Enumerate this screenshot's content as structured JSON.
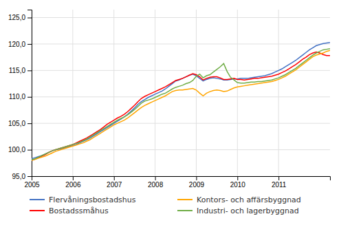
{
  "chart_data": {
    "type": "line",
    "x": [
      2005,
      2005.0833,
      2005.1667,
      2005.25,
      2005.3333,
      2005.4167,
      2005.5,
      2005.5833,
      2005.6667,
      2005.75,
      2005.8333,
      2005.9167,
      2006,
      2006.0833,
      2006.1667,
      2006.25,
      2006.3333,
      2006.4167,
      2006.5,
      2006.5833,
      2006.6667,
      2006.75,
      2006.8333,
      2006.9167,
      2007,
      2007.0833,
      2007.1667,
      2007.25,
      2007.3333,
      2007.4167,
      2007.5,
      2007.5833,
      2007.6667,
      2007.75,
      2007.8333,
      2007.9167,
      2008,
      2008.0833,
      2008.1667,
      2008.25,
      2008.3333,
      2008.4167,
      2008.5,
      2008.5833,
      2008.6667,
      2008.75,
      2008.8333,
      2008.9167,
      2009,
      2009.0833,
      2009.1667,
      2009.25,
      2009.3333,
      2009.4167,
      2009.5,
      2009.5833,
      2009.6667,
      2009.75,
      2009.8333,
      2009.9167,
      2010,
      2010.0833,
      2010.1667,
      2010.25,
      2010.3333,
      2010.4167,
      2010.5,
      2010.5833,
      2010.6667,
      2010.75,
      2010.8333,
      2010.9167,
      2011,
      2011.0833,
      2011.1667,
      2011.25,
      2011.3333,
      2011.4167,
      2011.5,
      2011.5833,
      2011.6667,
      2011.75,
      2011.8333,
      2011.9167,
      2012,
      2012.0833,
      2012.1667,
      2012.25
    ],
    "series": [
      {
        "name": "Flervåningsbostadshus",
        "color": "#4472C4",
        "values": [
          98.3,
          98.5,
          98.7,
          98.9,
          99.2,
          99.5,
          99.8,
          100.0,
          100.1,
          100.2,
          100.4,
          100.6,
          100.8,
          101.0,
          101.3,
          101.6,
          101.9,
          102.2,
          102.6,
          103.0,
          103.4,
          103.8,
          104.2,
          104.6,
          105.0,
          105.4,
          105.8,
          106.2,
          106.7,
          107.3,
          107.9,
          108.6,
          109.1,
          109.5,
          109.9,
          110.2,
          110.5,
          110.8,
          111.1,
          111.5,
          112.0,
          112.5,
          113.0,
          113.2,
          113.5,
          113.8,
          114.1,
          114.3,
          114.0,
          113.5,
          113.0,
          113.3,
          113.5,
          113.6,
          113.5,
          113.4,
          113.2,
          113.2,
          113.3,
          113.4,
          113.4,
          113.5,
          113.5,
          113.5,
          113.6,
          113.7,
          113.8,
          113.9,
          114.0,
          114.2,
          114.4,
          114.7,
          115.0,
          115.3,
          115.7,
          116.1,
          116.5,
          116.9,
          117.4,
          117.9,
          118.4,
          118.9,
          119.3,
          119.7,
          119.9,
          120.1,
          120.2,
          120.3
        ]
      },
      {
        "name": "Bostadssmåhus",
        "color": "#FF0000",
        "values": [
          98.0,
          98.2,
          98.5,
          98.8,
          99.1,
          99.5,
          99.8,
          100.0,
          100.2,
          100.4,
          100.6,
          100.8,
          101.0,
          101.3,
          101.6,
          101.9,
          102.2,
          102.6,
          103.0,
          103.4,
          103.8,
          104.3,
          104.8,
          105.2,
          105.6,
          106.0,
          106.3,
          106.7,
          107.2,
          107.8,
          108.4,
          109.1,
          109.7,
          110.1,
          110.4,
          110.7,
          111.0,
          111.3,
          111.6,
          111.9,
          112.3,
          112.7,
          113.1,
          113.3,
          113.5,
          113.8,
          114.1,
          114.4,
          114.2,
          113.8,
          113.2,
          113.5,
          113.7,
          113.8,
          113.8,
          113.6,
          113.3,
          113.3,
          113.4,
          113.5,
          113.3,
          113.3,
          113.2,
          113.3,
          113.4,
          113.5,
          113.5,
          113.6,
          113.7,
          113.8,
          113.9,
          114.1,
          114.3,
          114.6,
          114.9,
          115.3,
          115.7,
          116.1,
          116.6,
          117.1,
          117.5,
          118.0,
          118.3,
          118.5,
          118.3,
          118.0,
          117.8,
          117.8
        ]
      },
      {
        "name": "Kontors- och affärsbyggnad",
        "color": "#FFA500",
        "values": [
          98.0,
          98.2,
          98.4,
          98.6,
          98.8,
          99.1,
          99.4,
          99.7,
          99.9,
          100.1,
          100.3,
          100.5,
          100.7,
          100.9,
          101.1,
          101.3,
          101.6,
          101.9,
          102.3,
          102.7,
          103.1,
          103.5,
          103.9,
          104.3,
          104.7,
          105.0,
          105.3,
          105.6,
          106.0,
          106.5,
          107.0,
          107.5,
          108.0,
          108.4,
          108.7,
          109.0,
          109.3,
          109.6,
          109.9,
          110.2,
          110.6,
          111.0,
          111.2,
          111.3,
          111.3,
          111.4,
          111.5,
          111.6,
          111.3,
          110.7,
          110.2,
          110.7,
          111.0,
          111.2,
          111.3,
          111.2,
          111.0,
          111.1,
          111.4,
          111.7,
          111.9,
          112.0,
          112.1,
          112.2,
          112.3,
          112.4,
          112.5,
          112.6,
          112.7,
          112.8,
          112.9,
          113.1,
          113.3,
          113.6,
          113.9,
          114.3,
          114.7,
          115.1,
          115.6,
          116.1,
          116.6,
          117.1,
          117.6,
          117.9,
          118.1,
          118.3,
          118.6,
          118.8
        ]
      },
      {
        "name": "Industri- och lagerbyggnad",
        "color": "#70AD47",
        "values": [
          98.1,
          98.3,
          98.6,
          98.9,
          99.2,
          99.5,
          99.8,
          100.0,
          100.2,
          100.4,
          100.6,
          100.8,
          101.0,
          101.2,
          101.4,
          101.7,
          102.0,
          102.4,
          102.8,
          103.2,
          103.6,
          104.0,
          104.4,
          104.8,
          105.2,
          105.6,
          105.9,
          106.2,
          106.6,
          107.1,
          107.6,
          108.2,
          108.8,
          109.2,
          109.4,
          109.6,
          109.9,
          110.2,
          110.5,
          110.7,
          111.1,
          111.5,
          111.8,
          112.0,
          112.2,
          112.5,
          112.7,
          113.1,
          113.9,
          114.3,
          113.6,
          114.0,
          114.2,
          114.7,
          115.2,
          115.7,
          116.3,
          114.8,
          113.7,
          113.2,
          112.7,
          112.6,
          112.6,
          112.7,
          112.8,
          112.8,
          112.9,
          112.9,
          113.0,
          113.1,
          113.2,
          113.4,
          113.6,
          113.9,
          114.2,
          114.6,
          115.0,
          115.4,
          115.9,
          116.4,
          116.9,
          117.4,
          117.9,
          118.3,
          118.6,
          118.9,
          119.0,
          119.1
        ]
      }
    ],
    "xlim": [
      2005,
      2012.25
    ],
    "xticks": [
      2005,
      2006,
      2007,
      2008,
      2009,
      2010,
      2011
    ],
    "ylim": [
      95.0,
      126.5
    ],
    "yticks": [
      {
        "value": 95.0,
        "label": "95,0"
      },
      {
        "value": 100.0,
        "label": "100,0"
      },
      {
        "value": 105.0,
        "label": "105,0"
      },
      {
        "value": 110.0,
        "label": "110,0"
      },
      {
        "value": 115.0,
        "label": "115,0"
      },
      {
        "value": 120.0,
        "label": "120,0"
      },
      {
        "value": 125.0,
        "label": "125,0"
      }
    ],
    "grid": true,
    "legend": "bottom"
  }
}
